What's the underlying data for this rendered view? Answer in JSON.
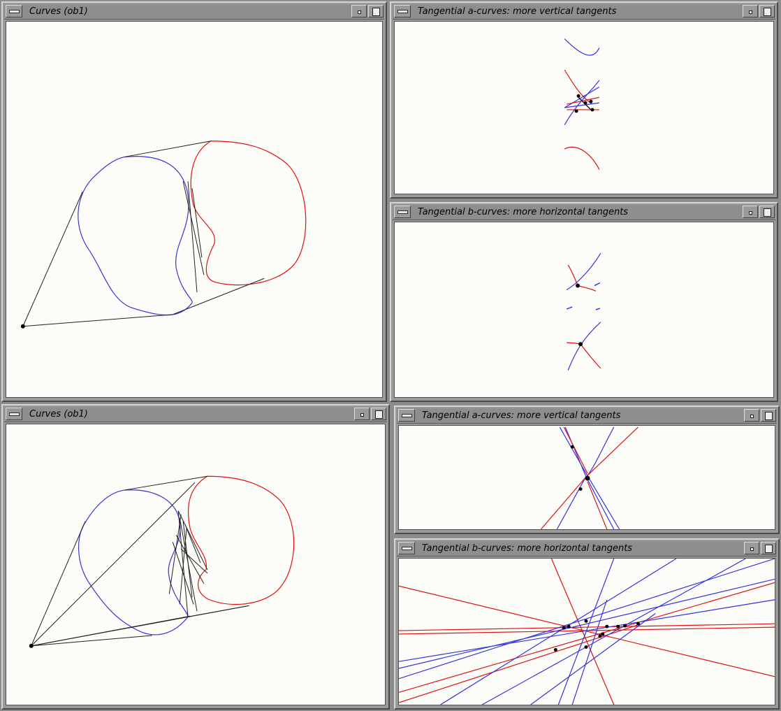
{
  "windows": {
    "w1": {
      "title": "Curves (ob1)"
    },
    "w2": {
      "title": "Tangential a-curves: more vertical tangents"
    },
    "w3": {
      "title": "Tangential b-curves: more horizontal tangents"
    },
    "w4": {
      "title": "Curves (ob1)"
    },
    "w5": {
      "title": "Tangential a-curves: more vertical tangents"
    },
    "w6": {
      "title": "Tangential b-curves: more horizontal tangents"
    }
  },
  "colors": {
    "curve_a": "#3333dd",
    "curve_b": "#e01010",
    "tangent": "#202020",
    "point": "#000000"
  },
  "icons": [
    "window-menu-icon",
    "minimize-icon",
    "maximize-icon"
  ]
}
